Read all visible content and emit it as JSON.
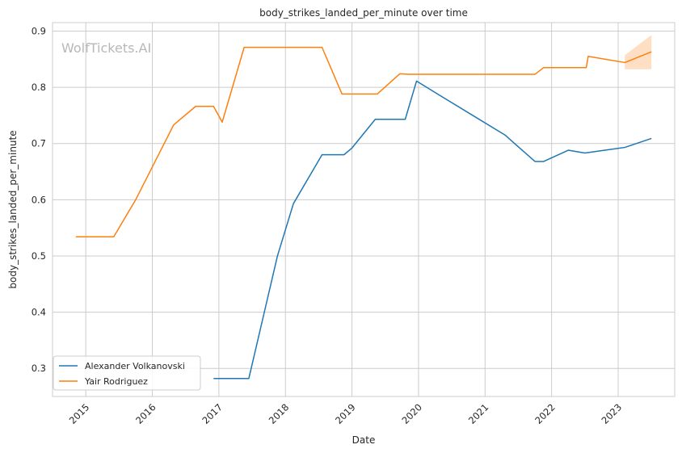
{
  "chart_data": {
    "type": "line",
    "title": "body_strikes_landed_per_minute over time",
    "xlabel": "Date",
    "ylabel": "body_strikes_landed_per_minute",
    "watermark": "WolfTickets.AI",
    "xlim": [
      2014.5,
      2023.85
    ],
    "ylim": [
      0.25,
      0.915
    ],
    "x_ticks": [
      2015,
      2016,
      2017,
      2018,
      2019,
      2020,
      2021,
      2022,
      2023
    ],
    "x_tick_labels": [
      "2015",
      "2016",
      "2017",
      "2018",
      "2019",
      "2020",
      "2021",
      "2022",
      "2023"
    ],
    "y_ticks": [
      0.3,
      0.4,
      0.5,
      0.6,
      0.7,
      0.8,
      0.9
    ],
    "y_tick_labels": [
      "0.3",
      "0.4",
      "0.5",
      "0.6",
      "0.7",
      "0.8",
      "0.9"
    ],
    "grid": true,
    "legend_position": "bottom-left",
    "series": [
      {
        "name": "Alexander Volkanovski",
        "color": "#1f77b4",
        "x": [
          2016.92,
          2017.45,
          2017.88,
          2018.12,
          2018.55,
          2018.88,
          2019.0,
          2019.35,
          2019.8,
          2019.97,
          2020.3,
          2020.8,
          2021.3,
          2021.75,
          2021.88,
          2022.25,
          2022.5,
          2022.8,
          2023.1,
          2023.5
        ],
        "y": [
          0.282,
          0.282,
          0.5,
          0.593,
          0.68,
          0.68,
          0.692,
          0.743,
          0.743,
          0.811,
          0.787,
          0.751,
          0.715,
          0.668,
          0.668,
          0.688,
          0.683,
          0.688,
          0.693,
          0.709
        ]
      },
      {
        "name": "Yair Rodriguez",
        "color": "#ff7f0e",
        "x": [
          2014.85,
          2015.42,
          2015.75,
          2016.32,
          2016.65,
          2016.92,
          2017.05,
          2017.38,
          2018.55,
          2018.85,
          2019.0,
          2019.38,
          2019.72,
          2019.85,
          2020.2,
          2021.0,
          2021.75,
          2021.88,
          2022.52,
          2022.55,
          2023.1,
          2023.5
        ],
        "y": [
          0.534,
          0.534,
          0.6,
          0.733,
          0.766,
          0.766,
          0.738,
          0.871,
          0.871,
          0.788,
          0.788,
          0.788,
          0.824,
          0.823,
          0.823,
          0.823,
          0.823,
          0.835,
          0.835,
          0.855,
          0.844,
          0.863
        ]
      }
    ],
    "confidence_band": {
      "series": "Yair Rodriguez",
      "color": "#ff7f0e",
      "x": [
        2023.1,
        2023.5
      ],
      "lower": [
        0.832,
        0.832
      ],
      "upper": [
        0.857,
        0.893
      ]
    }
  }
}
